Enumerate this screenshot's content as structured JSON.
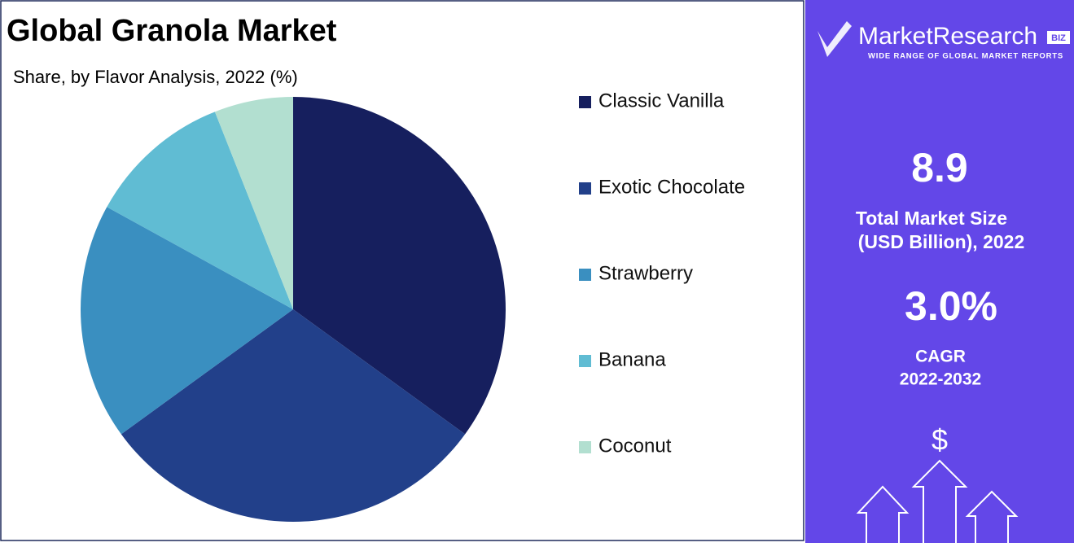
{
  "chart_data": {
    "type": "pie",
    "title": "Global Granola Market",
    "subtitle": "Share, by Flavor Analysis, 2022 (%)",
    "categories": [
      "Classic Vanilla",
      "Exotic Chocolate",
      "Strawberry",
      "Banana",
      "Coconut"
    ],
    "values": [
      35,
      30,
      18,
      11,
      6
    ],
    "colors": [
      "#161f5e",
      "#22408a",
      "#3a8fc0",
      "#60bcd3",
      "#b2dfd0"
    ],
    "legend": "right"
  },
  "side_panel": {
    "brand": "MarketResearch",
    "brand_badge": "BIZ",
    "tagline": "WIDE RANGE OF GLOBAL MARKET REPORTS",
    "market_size": "8.9",
    "market_size_label_1": "Total Market Size",
    "market_size_label_2": "(USD Billion), 2022",
    "cagr": "3.0%",
    "cagr_label": "CAGR",
    "cagr_period": "2022-2032",
    "icon_symbol": "$"
  }
}
